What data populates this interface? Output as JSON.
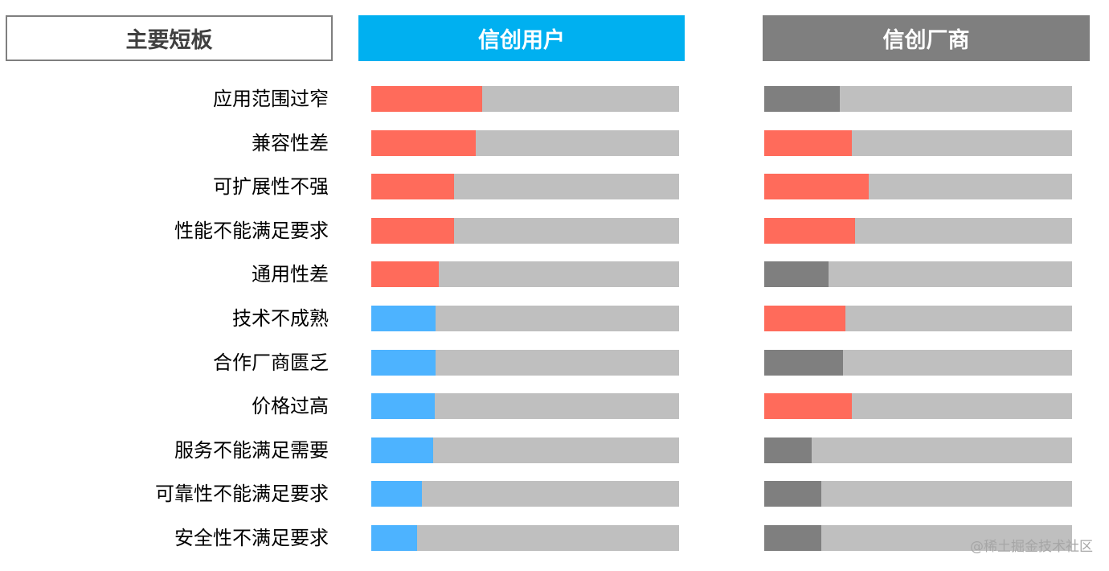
{
  "headers": {
    "label_column": "主要短板",
    "users": "信创用户",
    "vendors": "信创厂商"
  },
  "colors": {
    "highlight": "#ff6b5b",
    "users_normal": "#4db3ff",
    "vendors_normal": "#7f7f7f",
    "track": "#bfbfbf"
  },
  "chart_data": {
    "type": "bar",
    "orientation": "horizontal",
    "xlim": [
      0,
      100
    ],
    "categories": [
      "应用范围过窄",
      "兼容性差",
      "可扩展性不强",
      "性能不能满足要求",
      "通用性差",
      "技术不成熟",
      "合作厂商匮乏",
      "价格过高",
      "服务不能满足需要",
      "可靠性不能满足要求",
      "安全性不满足要求"
    ],
    "series": [
      {
        "name": "信创用户",
        "values": [
          36,
          34,
          27,
          27,
          22,
          21,
          21,
          20.5,
          20,
          16.5,
          15
        ],
        "highlighted": [
          true,
          true,
          true,
          true,
          true,
          false,
          false,
          false,
          false,
          false,
          false
        ]
      },
      {
        "name": "信创厂商",
        "values": [
          24.5,
          28.5,
          34,
          29.5,
          21,
          26.5,
          25.5,
          28.5,
          15.5,
          18.5,
          18.5
        ],
        "highlighted": [
          false,
          true,
          true,
          true,
          false,
          true,
          false,
          true,
          false,
          false,
          false
        ]
      }
    ]
  },
  "watermark": "@稀土掘金技术社区"
}
